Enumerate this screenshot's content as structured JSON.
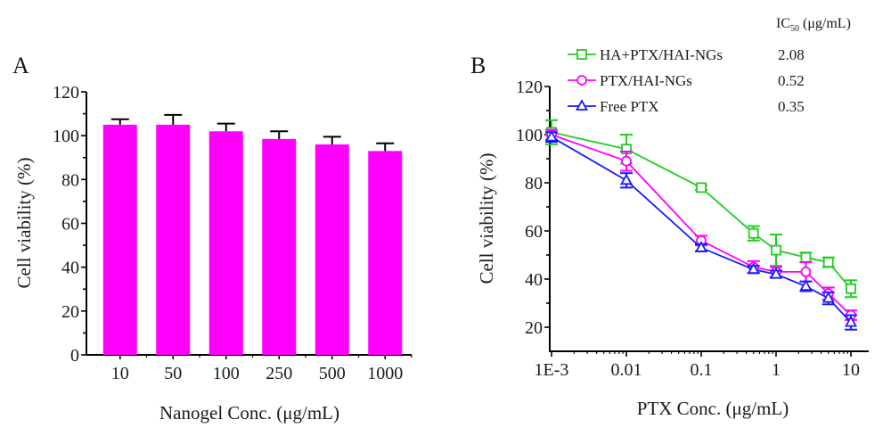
{
  "chart_data": [
    {
      "panel": "A",
      "type": "bar",
      "title": "",
      "xlabel": "Nanogel Conc. (μg/mL)",
      "ylabel": "Cell viability (%)",
      "ylim": [
        0,
        120
      ],
      "yticks": [
        0,
        20,
        40,
        60,
        80,
        100,
        120
      ],
      "categories": [
        "10",
        "50",
        "100",
        "250",
        "500",
        "1000"
      ],
      "values": [
        105,
        105,
        102,
        98.5,
        96,
        93
      ],
      "errors": [
        2.5,
        4.5,
        3.5,
        3.5,
        3.5,
        3.5
      ],
      "color": "#ff00ff",
      "grid": false
    },
    {
      "panel": "B",
      "type": "line",
      "xscale": "log",
      "xlabel": "PTX Conc. (μg/mL)",
      "ylabel": "Cell viability (%)",
      "ylim": [
        10,
        120
      ],
      "yticks": [
        20,
        40,
        60,
        80,
        100,
        120
      ],
      "xticks": [
        {
          "value": 0.001,
          "label": "1E-3"
        },
        {
          "value": 0.01,
          "label": "0.01"
        },
        {
          "value": 0.1,
          "label": "0.1"
        },
        {
          "value": 1,
          "label": "1"
        },
        {
          "value": 10,
          "label": "10"
        }
      ],
      "x": [
        0.001,
        0.01,
        0.1,
        0.5,
        1,
        2.5,
        5,
        10
      ],
      "legend_position": "top",
      "ic50_header": "IC50 (μg/mL)",
      "series": [
        {
          "name": "HA+PTX/HAI-NGs",
          "color": "#22cc22",
          "marker": "square",
          "ic50": "2.08",
          "values": [
            101,
            94,
            78,
            59,
            52,
            49,
            47,
            36
          ],
          "errors": [
            5,
            6,
            1,
            3,
            6.5,
            2,
            2,
            3.5
          ]
        },
        {
          "name": "PTX/HAI-NGs",
          "color": "#ff00ff",
          "marker": "circle",
          "ic50": "0.52",
          "values": [
            100,
            89,
            56,
            45,
            43,
            43,
            34,
            25
          ],
          "errors": [
            2,
            4,
            2,
            2.5,
            2,
            4,
            2.5,
            2
          ]
        },
        {
          "name": "Free PTX",
          "color": "#1a1aff",
          "marker": "triangle",
          "ic50": "0.35",
          "values": [
            99,
            81,
            53,
            44,
            42,
            37,
            32,
            22
          ],
          "errors": [
            2,
            3,
            1.5,
            1.5,
            1.5,
            2,
            2.5,
            3
          ]
        }
      ],
      "grid": false
    }
  ],
  "panel_labels": [
    "A",
    "B"
  ]
}
